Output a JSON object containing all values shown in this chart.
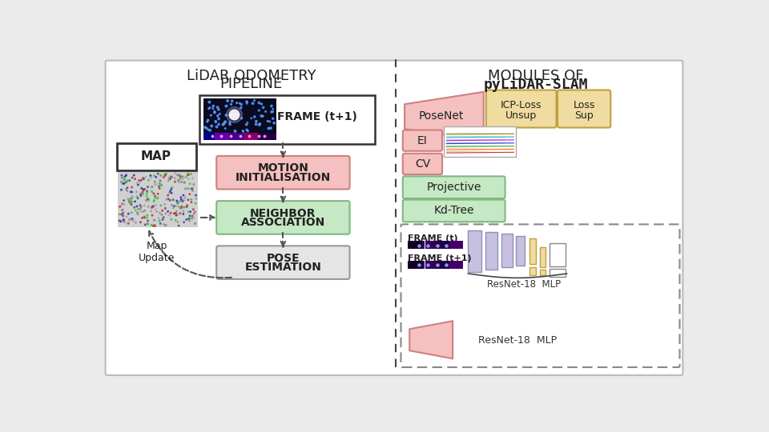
{
  "title_left_1": "LiDAR ODOMETRY",
  "title_left_2": "PIPELINE",
  "title_right_1": "MODULES OF",
  "title_right_2": "pyLiDAR-SLAM",
  "pink_fc": "#f5c0c0",
  "pink_ec": "#d08080",
  "green_fc": "#c5e8c5",
  "green_ec": "#80b880",
  "gray_fc": "#e5e5e5",
  "gray_ec": "#999999",
  "white_fc": "#ffffff",
  "white_ec": "#333333",
  "tan_fc": "#f0dba0",
  "tan_ec": "#c0a040",
  "lavender_fc": "#c8c0e0",
  "lavender_ec": "#9090b8",
  "bg_color": "#ebebeb",
  "panel_fc": "#ffffff",
  "panel_ec": "#bbbbbb"
}
